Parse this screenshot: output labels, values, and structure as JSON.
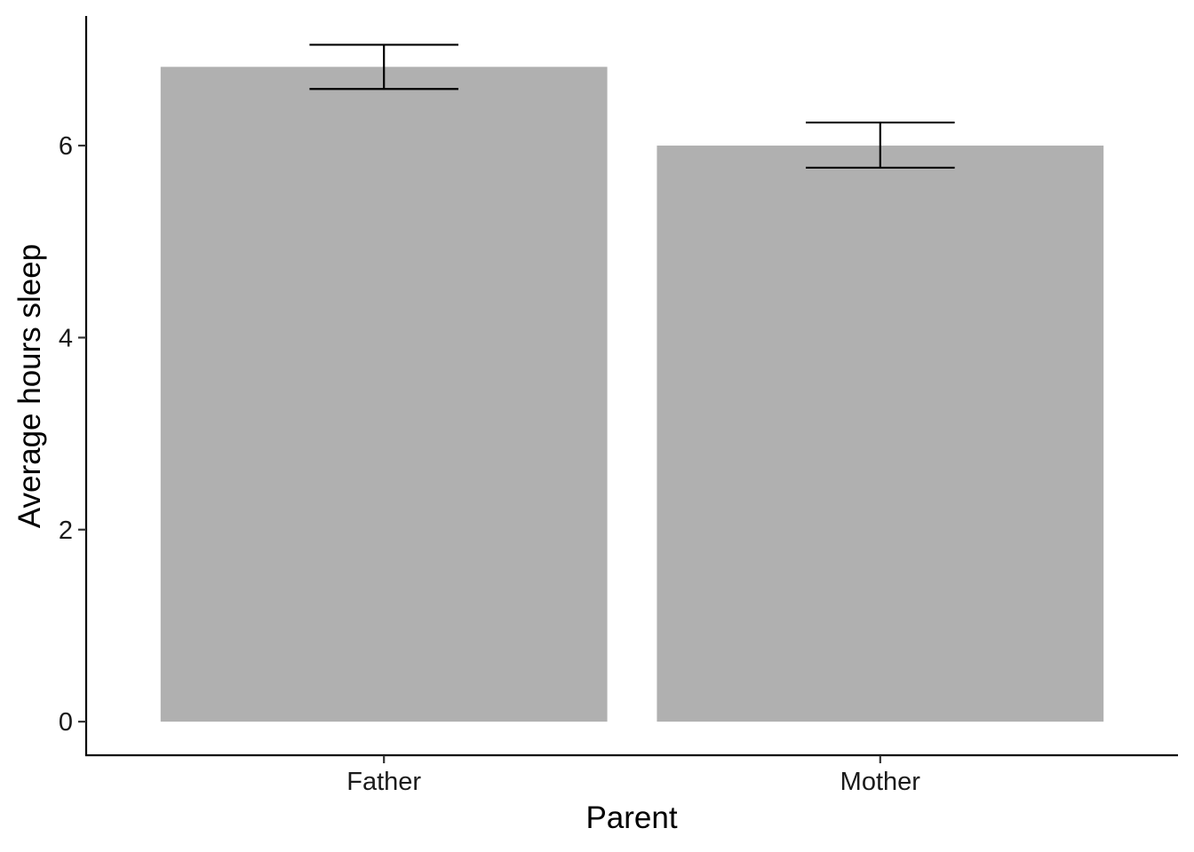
{
  "chart_data": {
    "type": "bar",
    "categories": [
      "Father",
      "Mother"
    ],
    "values": [
      6.82,
      6.0
    ],
    "error_bars": {
      "lower": [
        6.59,
        5.77
      ],
      "upper": [
        7.05,
        6.24
      ]
    },
    "xlabel": "Parent",
    "ylabel": "Average hours sleep",
    "yticks": [
      0,
      2,
      4,
      6
    ],
    "ytick_labels": [
      "0",
      "2",
      "4",
      "6"
    ],
    "ylim": [
      -0.35,
      7.35
    ],
    "grid": false,
    "legend": "none",
    "bar_color": "#b0b0b0",
    "errorbar_color": "#000000",
    "axis_color": "#000000"
  }
}
